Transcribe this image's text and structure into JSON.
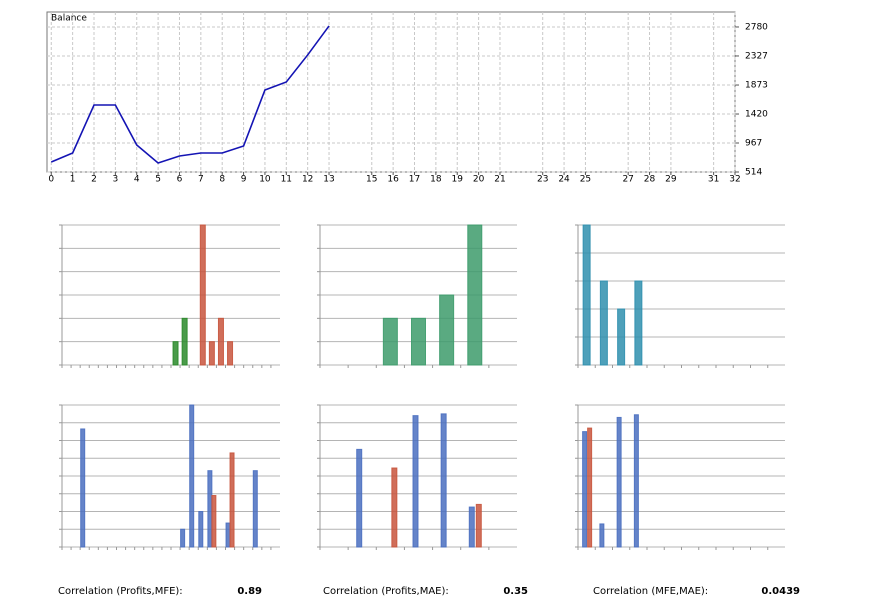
{
  "chart_data": [
    {
      "type": "line",
      "title": "Balance",
      "x": [
        0,
        1,
        2,
        3,
        4,
        5,
        6,
        7,
        8,
        9,
        10,
        11,
        12,
        13
      ],
      "series": [
        {
          "color": "#1414b4",
          "values": [
            670,
            811,
            1561,
            1561,
            936,
            655,
            764,
            811,
            811,
            920,
            1796,
            1921,
            2343,
            2796
          ]
        }
      ],
      "xlim": [
        -0.2,
        32
      ],
      "xticks": [
        0,
        1,
        2,
        3,
        4,
        5,
        6,
        7,
        8,
        9,
        10,
        11,
        12,
        13,
        15,
        16,
        17,
        18,
        19,
        20,
        21,
        23,
        24,
        25,
        27,
        28,
        29,
        31,
        32
      ],
      "ylim": [
        514,
        3014
      ],
      "yticks": [
        514,
        967,
        1420,
        1873,
        2327,
        2780
      ],
      "grid": true
    },
    {
      "type": "bar",
      "categories": [
        null,
        null,
        null,
        null,
        null,
        null,
        null,
        null,
        null,
        null,
        null,
        null,
        null,
        null,
        null,
        null,
        null,
        null,
        null,
        null,
        null,
        null,
        null,
        null
      ],
      "series": [
        {
          "color": "#2a8a2a",
          "values": [
            null,
            null,
            null,
            null,
            null,
            null,
            null,
            null,
            null,
            null,
            null,
            null,
            1,
            2,
            null,
            null,
            null,
            null,
            null,
            null,
            null,
            null,
            null,
            null
          ]
        },
        {
          "color": "#c8553d",
          "values": [
            null,
            null,
            null,
            null,
            null,
            null,
            null,
            null,
            null,
            null,
            null,
            null,
            null,
            null,
            null,
            6,
            1,
            2,
            1,
            null,
            null,
            null,
            null,
            null
          ]
        }
      ],
      "ylim": [
        0,
        6
      ],
      "yticks": [
        0,
        1,
        2,
        3,
        4,
        5,
        6
      ]
    },
    {
      "type": "bar",
      "categories": [
        null,
        null,
        null,
        null,
        null,
        null,
        null
      ],
      "series": [
        {
          "color": "#3d9b6b",
          "values": [
            null,
            null,
            2,
            2,
            3,
            6,
            null
          ]
        }
      ],
      "ylim": [
        0,
        6
      ],
      "yticks": [
        0,
        1,
        2,
        3,
        4,
        5,
        6
      ]
    },
    {
      "type": "bar",
      "categories": [
        null,
        null,
        null,
        null,
        null,
        null,
        null,
        null,
        null,
        null,
        null,
        null
      ],
      "series": [
        {
          "color": "#2f8fae",
          "values": [
            5,
            3,
            2,
            3,
            null,
            null,
            null,
            null,
            null,
            null,
            null,
            null
          ]
        }
      ],
      "ylim": [
        0,
        5
      ],
      "yticks": [
        0,
        1,
        2,
        3,
        4,
        5
      ]
    },
    {
      "type": "bar",
      "categories": [
        null,
        null,
        null,
        null,
        null,
        null,
        null,
        null,
        null,
        null,
        null,
        null,
        null,
        null,
        null,
        null,
        null,
        null,
        null,
        null,
        null,
        null,
        null,
        null
      ],
      "series": [
        {
          "color": "#4a6fc0",
          "values": [
            null,
            null,
            6.65,
            null,
            null,
            null,
            null,
            null,
            null,
            null,
            null,
            null,
            null,
            1,
            8,
            2,
            4.3,
            null,
            1.35,
            null,
            null,
            4.3,
            null,
            null
          ]
        },
        {
          "color": "#c8553d",
          "values": [
            null,
            null,
            null,
            null,
            null,
            null,
            null,
            null,
            null,
            null,
            null,
            null,
            null,
            null,
            null,
            null,
            2.9,
            null,
            5.3,
            null,
            null,
            null,
            null,
            null
          ]
        }
      ],
      "ylim": [
        0,
        8
      ],
      "yticks": [
        0,
        1,
        2,
        3,
        4,
        5,
        6,
        7,
        8
      ]
    },
    {
      "type": "bar",
      "categories": [
        null,
        null,
        null,
        null,
        null,
        null,
        null
      ],
      "series": [
        {
          "color": "#4a6fc0",
          "values": [
            null,
            5.5,
            null,
            7.4,
            7.5,
            2.25,
            null
          ]
        },
        {
          "color": "#c8553d",
          "values": [
            null,
            null,
            4.45,
            null,
            null,
            2.4,
            null
          ]
        }
      ],
      "ylim": [
        0,
        8
      ],
      "yticks": [
        0,
        1,
        2,
        3,
        4,
        5,
        6,
        7,
        8
      ]
    },
    {
      "type": "bar",
      "categories": [
        null,
        null,
        null,
        null,
        null,
        null,
        null,
        null,
        null,
        null,
        null,
        null
      ],
      "series": [
        {
          "color": "#4a6fc0",
          "values": [
            6.5,
            1.3,
            7.3,
            7.45,
            null,
            null,
            null,
            null,
            null,
            null,
            null,
            null
          ]
        },
        {
          "color": "#c8553d",
          "values": [
            6.7,
            null,
            null,
            null,
            null,
            null,
            null,
            null,
            null,
            null,
            null,
            null
          ]
        }
      ],
      "ylim": [
        0,
        8
      ],
      "yticks": [
        0,
        1,
        2,
        3,
        4,
        5,
        6,
        7,
        8
      ]
    }
  ],
  "correlations": [
    {
      "label": "Correlation (Profits,MFE):",
      "value": 0.89
    },
    {
      "label": "Correlation (Profits,MAE):",
      "value": 0.35
    },
    {
      "label": "Correlation (MFE,MAE):",
      "value": 0.0439
    }
  ]
}
